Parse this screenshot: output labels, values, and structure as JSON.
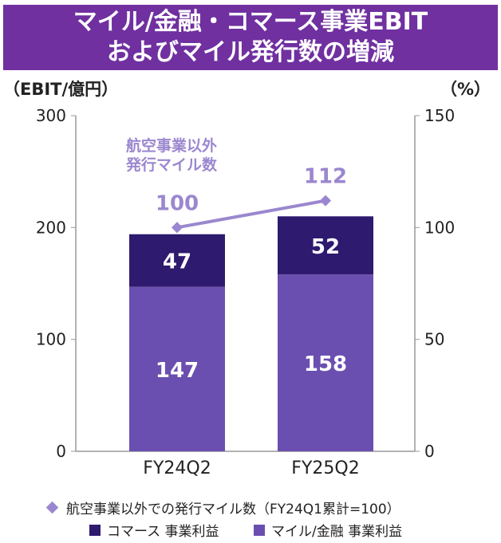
{
  "title_lines": [
    "マイル/金融・コマース事業EBIT",
    "およびマイル発行数の増減"
  ],
  "chart_data": {
    "type": "bar",
    "stacked": true,
    "categories": [
      "FY24Q2",
      "FY25Q2"
    ],
    "series": [
      {
        "name": "マイル/金融 事業利益",
        "values": [
          147,
          158
        ],
        "color": "#6a4fb0",
        "axis": "left"
      },
      {
        "name": "コマース 事業利益",
        "values": [
          47,
          52
        ],
        "color": "#2e1a6e",
        "axis": "left"
      },
      {
        "name": "航空事業以外での発行マイル数（FY24Q1累計=100）",
        "type": "line",
        "values": [
          100,
          112
        ],
        "color": "#9b87cf",
        "axis": "right"
      }
    ],
    "ylabel_left": "（EBIT/億円）",
    "ylabel_right": "（%）",
    "ylim_left": [
      0,
      300
    ],
    "ylim_right": [
      0,
      150
    ],
    "yticks_left": [
      0,
      100,
      200,
      300
    ],
    "yticks_right": [
      0,
      50,
      100,
      150
    ],
    "annotation": [
      "航空事業以外",
      "発行マイル数"
    ],
    "grid": false,
    "legend_position": "bottom"
  },
  "legend": {
    "line": "航空事業以外での発行マイル数（FY24Q1累計=100）",
    "commerce": "コマース 事業利益",
    "mile": "マイル/金融 事業利益"
  }
}
